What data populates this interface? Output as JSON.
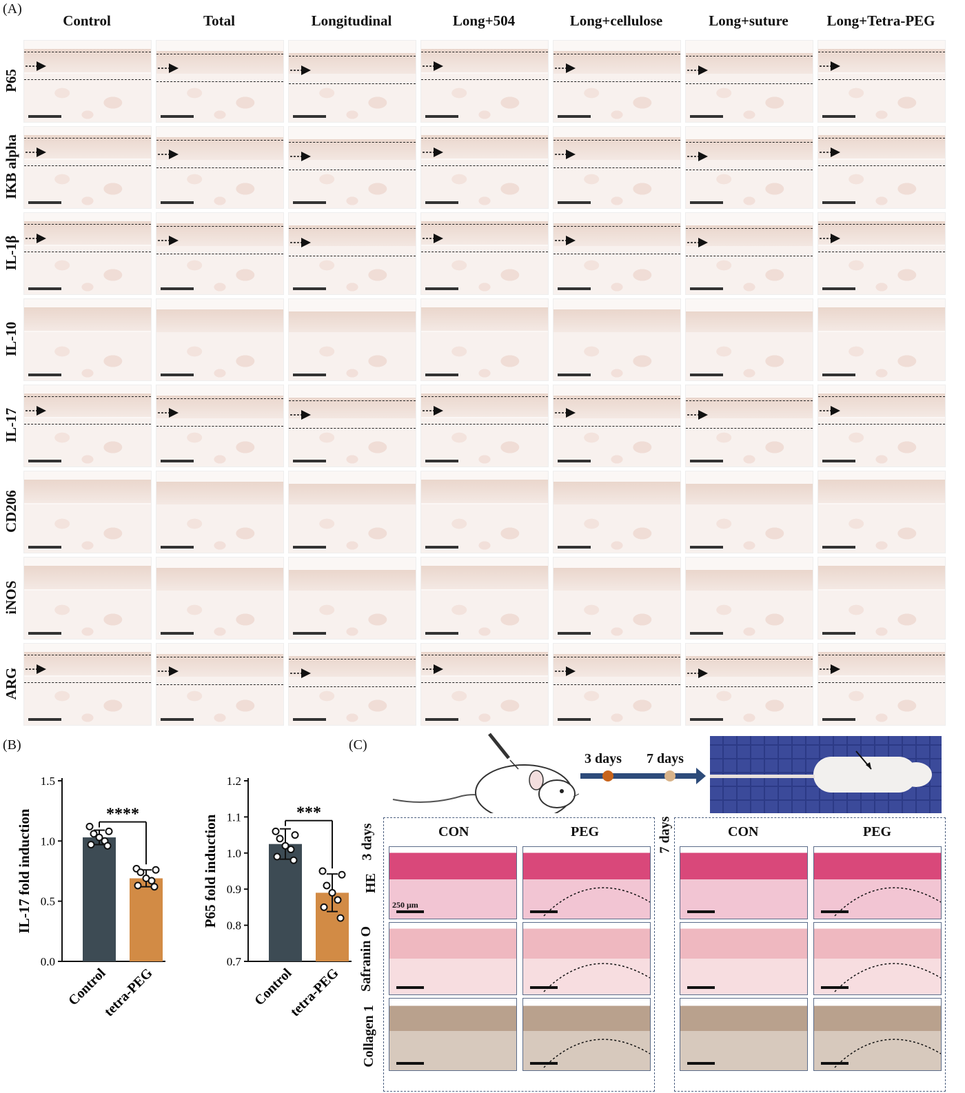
{
  "panel_a": {
    "letter": "(A)",
    "columns": [
      "Control",
      "Total",
      "Longitudinal",
      "Long+504",
      "Long+cellulose",
      "Long+suture",
      "Long+Tetra-PEG"
    ],
    "rows": [
      "P65",
      "IKB alpha",
      "IL-1β",
      "IL-10",
      "IL-17",
      "CD206",
      "iNOS",
      "ARG"
    ]
  },
  "panel_b": {
    "letter": "(B)"
  },
  "panel_c": {
    "letter": "(C)",
    "timeline": [
      "3 days",
      "7 days"
    ],
    "group_3d": "3 days",
    "group_7d": "7 days",
    "col_con": "CON",
    "col_peg": "PEG",
    "stains": [
      "HE",
      "Safranin O",
      "Collagen 1"
    ],
    "scale_label": "250 μm"
  },
  "chart_data": [
    {
      "type": "bar",
      "categories": [
        "Control",
        "tetra-PEG"
      ],
      "values": [
        1.03,
        0.69
      ],
      "errors": [
        0.06,
        0.07
      ],
      "points": [
        [
          1.12,
          1.08,
          1.06,
          1.03,
          1.0,
          0.97,
          0.96
        ],
        [
          0.77,
          0.76,
          0.74,
          0.69,
          0.67,
          0.63,
          0.62
        ]
      ],
      "colors": [
        "#3d4b54",
        "#d28b45"
      ],
      "ylabel": "IL-17 fold induction",
      "ylim": [
        0.0,
        1.5
      ],
      "yticks": [
        "0.0",
        "0.5",
        "1.0",
        "1.5"
      ],
      "significance": "****"
    },
    {
      "type": "bar",
      "categories": [
        "Control",
        "tetra-PEG"
      ],
      "values": [
        1.025,
        0.89
      ],
      "errors": [
        0.042,
        0.052
      ],
      "points": [
        [
          1.06,
          1.05,
          1.04,
          1.02,
          1.01,
          0.99,
          0.98
        ],
        [
          0.95,
          0.94,
          0.91,
          0.89,
          0.87,
          0.85,
          0.82
        ]
      ],
      "colors": [
        "#3d4b54",
        "#d28b45"
      ],
      "ylabel": "P65 fold induction",
      "ylim": [
        0.7,
        1.2
      ],
      "yticks": [
        "0.7",
        "0.8",
        "0.9",
        "1.0",
        "1.1",
        "1.2"
      ],
      "significance": "***"
    }
  ]
}
